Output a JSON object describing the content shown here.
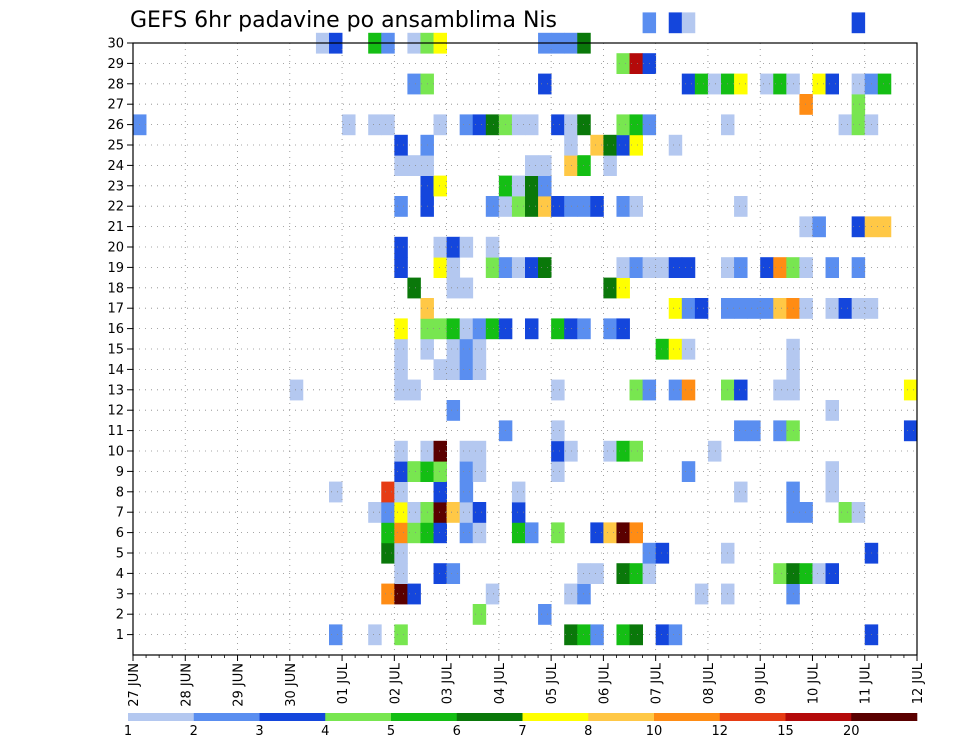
{
  "chart_data": {
    "type": "heatmap",
    "title": "GEFS 6hr padavine po ansamblima Nis",
    "xlabel": "",
    "ylabel": "",
    "x_ticks": [
      "27 JUN",
      "28 JUN",
      "29 JUN",
      "30 JUN",
      "01 JUL",
      "02 JUL",
      "03 JUL",
      "04 JUL",
      "05 JUL",
      "06 JUL",
      "07 JUL",
      "08 JUL",
      "09 JUL",
      "10 JUL",
      "11 JUL",
      "12 JUL"
    ],
    "y_ticks": [
      "1",
      "2",
      "3",
      "4",
      "5",
      "6",
      "7",
      "8",
      "9",
      "10",
      "11",
      "12",
      "13",
      "14",
      "15",
      "16",
      "17",
      "18",
      "19",
      "20",
      "21",
      "22",
      "23",
      "24",
      "25",
      "26",
      "27",
      "28",
      "29",
      "30"
    ],
    "time_steps_per_day": 4,
    "x_range": [
      0,
      60
    ],
    "y_range": [
      0,
      30
    ],
    "grid": true,
    "legend": {
      "position": "bottom",
      "labels": [
        "1",
        "2",
        "3",
        "4",
        "5",
        "6",
        "7",
        "8",
        "10",
        "12",
        "15",
        "20"
      ],
      "colors": [
        "#b4c8f0",
        "#5a8ef0",
        "#1446dc",
        "#78e650",
        "#14be14",
        "#0a780a",
        "#ffff00",
        "#ffc846",
        "#ff8c14",
        "#e63c14",
        "#b40a0a",
        "#5a0000"
      ]
    },
    "cells": [
      [
        1,
        15,
        "#5a8ef0"
      ],
      [
        1,
        18,
        "#b4c8f0"
      ],
      [
        1,
        20,
        "#78e650"
      ],
      [
        1,
        33,
        "#0a780a"
      ],
      [
        1,
        34,
        "#14be14"
      ],
      [
        1,
        35,
        "#5a8ef0"
      ],
      [
        1,
        37,
        "#14be14"
      ],
      [
        1,
        38,
        "#0a780a"
      ],
      [
        1,
        40,
        "#1446dc"
      ],
      [
        1,
        41,
        "#5a8ef0"
      ],
      [
        1,
        56,
        "#1446dc"
      ],
      [
        2,
        26,
        "#78e650"
      ],
      [
        2,
        31,
        "#5a8ef0"
      ],
      [
        3,
        19,
        "#ff8c14"
      ],
      [
        3,
        20,
        "#5a0000"
      ],
      [
        3,
        21,
        "#1446dc"
      ],
      [
        3,
        27,
        "#b4c8f0"
      ],
      [
        3,
        33,
        "#b4c8f0"
      ],
      [
        3,
        34,
        "#5a8ef0"
      ],
      [
        3,
        43,
        "#b4c8f0"
      ],
      [
        3,
        45,
        "#b4c8f0"
      ],
      [
        3,
        50,
        "#5a8ef0"
      ],
      [
        4,
        20,
        "#b4c8f0"
      ],
      [
        4,
        23,
        "#1446dc"
      ],
      [
        4,
        24,
        "#5a8ef0"
      ],
      [
        4,
        34,
        "#b4c8f0"
      ],
      [
        4,
        35,
        "#b4c8f0"
      ],
      [
        4,
        37,
        "#0a780a"
      ],
      [
        4,
        38,
        "#14be14"
      ],
      [
        4,
        39,
        "#b4c8f0"
      ],
      [
        4,
        49,
        "#78e650"
      ],
      [
        4,
        50,
        "#0a780a"
      ],
      [
        4,
        51,
        "#14be14"
      ],
      [
        4,
        52,
        "#b4c8f0"
      ],
      [
        4,
        53,
        "#1446dc"
      ],
      [
        5,
        19,
        "#0a780a"
      ],
      [
        5,
        20,
        "#b4c8f0"
      ],
      [
        5,
        39,
        "#5a8ef0"
      ],
      [
        5,
        40,
        "#1446dc"
      ],
      [
        5,
        45,
        "#b4c8f0"
      ],
      [
        5,
        56,
        "#1446dc"
      ],
      [
        6,
        19,
        "#14be14"
      ],
      [
        6,
        20,
        "#ff8c14"
      ],
      [
        6,
        21,
        "#78e650"
      ],
      [
        6,
        22,
        "#14be14"
      ],
      [
        6,
        23,
        "#1446dc"
      ],
      [
        6,
        25,
        "#5a8ef0"
      ],
      [
        6,
        26,
        "#b4c8f0"
      ],
      [
        6,
        29,
        "#14be14"
      ],
      [
        6,
        30,
        "#5a8ef0"
      ],
      [
        6,
        32,
        "#78e650"
      ],
      [
        6,
        35,
        "#1446dc"
      ],
      [
        6,
        36,
        "#ffc846"
      ],
      [
        6,
        37,
        "#5a0000"
      ],
      [
        6,
        38,
        "#ff8c14"
      ],
      [
        7,
        18,
        "#b4c8f0"
      ],
      [
        7,
        19,
        "#5a8ef0"
      ],
      [
        7,
        20,
        "#ffff00"
      ],
      [
        7,
        21,
        "#b4c8f0"
      ],
      [
        7,
        22,
        "#78e650"
      ],
      [
        7,
        23,
        "#5a0000"
      ],
      [
        7,
        24,
        "#ffc846"
      ],
      [
        7,
        25,
        "#b4c8f0"
      ],
      [
        7,
        26,
        "#1446dc"
      ],
      [
        7,
        29,
        "#1446dc"
      ],
      [
        7,
        50,
        "#5a8ef0"
      ],
      [
        7,
        51,
        "#5a8ef0"
      ],
      [
        7,
        54,
        "#78e650"
      ],
      [
        7,
        55,
        "#b4c8f0"
      ],
      [
        8,
        15,
        "#b4c8f0"
      ],
      [
        8,
        19,
        "#e63c14"
      ],
      [
        8,
        20,
        "#b4c8f0"
      ],
      [
        8,
        23,
        "#1446dc"
      ],
      [
        8,
        25,
        "#5a8ef0"
      ],
      [
        8,
        29,
        "#b4c8f0"
      ],
      [
        8,
        46,
        "#b4c8f0"
      ],
      [
        8,
        50,
        "#5a8ef0"
      ],
      [
        8,
        53,
        "#b4c8f0"
      ],
      [
        9,
        20,
        "#1446dc"
      ],
      [
        9,
        21,
        "#78e650"
      ],
      [
        9,
        22,
        "#14be14"
      ],
      [
        9,
        23,
        "#78e650"
      ],
      [
        9,
        25,
        "#5a8ef0"
      ],
      [
        9,
        26,
        "#b4c8f0"
      ],
      [
        9,
        32,
        "#b4c8f0"
      ],
      [
        9,
        42,
        "#5a8ef0"
      ],
      [
        9,
        53,
        "#b4c8f0"
      ],
      [
        10,
        20,
        "#b4c8f0"
      ],
      [
        10,
        22,
        "#b4c8f0"
      ],
      [
        10,
        23,
        "#5a0000"
      ],
      [
        10,
        25,
        "#b4c8f0"
      ],
      [
        10,
        26,
        "#b4c8f0"
      ],
      [
        10,
        32,
        "#1446dc"
      ],
      [
        10,
        33,
        "#b4c8f0"
      ],
      [
        10,
        36,
        "#b4c8f0"
      ],
      [
        10,
        37,
        "#14be14"
      ],
      [
        10,
        38,
        "#78e650"
      ],
      [
        10,
        44,
        "#b4c8f0"
      ],
      [
        11,
        28,
        "#5a8ef0"
      ],
      [
        11,
        32,
        "#b4c8f0"
      ],
      [
        11,
        46,
        "#5a8ef0"
      ],
      [
        11,
        47,
        "#5a8ef0"
      ],
      [
        11,
        49,
        "#5a8ef0"
      ],
      [
        11,
        50,
        "#78e650"
      ],
      [
        11,
        59,
        "#1446dc"
      ],
      [
        12,
        24,
        "#5a8ef0"
      ],
      [
        12,
        53,
        "#b4c8f0"
      ],
      [
        13,
        12,
        "#b4c8f0"
      ],
      [
        13,
        20,
        "#b4c8f0"
      ],
      [
        13,
        21,
        "#b4c8f0"
      ],
      [
        13,
        32,
        "#b4c8f0"
      ],
      [
        13,
        38,
        "#78e650"
      ],
      [
        13,
        39,
        "#5a8ef0"
      ],
      [
        13,
        41,
        "#5a8ef0"
      ],
      [
        13,
        42,
        "#ff8c14"
      ],
      [
        13,
        45,
        "#78e650"
      ],
      [
        13,
        46,
        "#1446dc"
      ],
      [
        13,
        49,
        "#b4c8f0"
      ],
      [
        13,
        50,
        "#b4c8f0"
      ],
      [
        13,
        59,
        "#ffff00"
      ],
      [
        14,
        20,
        "#b4c8f0"
      ],
      [
        14,
        23,
        "#b4c8f0"
      ],
      [
        14,
        24,
        "#b4c8f0"
      ],
      [
        14,
        25,
        "#5a8ef0"
      ],
      [
        14,
        26,
        "#b4c8f0"
      ],
      [
        14,
        50,
        "#b4c8f0"
      ],
      [
        15,
        20,
        "#b4c8f0"
      ],
      [
        15,
        22,
        "#b4c8f0"
      ],
      [
        15,
        24,
        "#b4c8f0"
      ],
      [
        15,
        25,
        "#5a8ef0"
      ],
      [
        15,
        26,
        "#b4c8f0"
      ],
      [
        15,
        40,
        "#14be14"
      ],
      [
        15,
        41,
        "#ffff00"
      ],
      [
        15,
        42,
        "#b4c8f0"
      ],
      [
        15,
        50,
        "#b4c8f0"
      ],
      [
        16,
        20,
        "#ffff00"
      ],
      [
        16,
        22,
        "#78e650"
      ],
      [
        16,
        23,
        "#78e650"
      ],
      [
        16,
        24,
        "#14be14"
      ],
      [
        16,
        25,
        "#b4c8f0"
      ],
      [
        16,
        26,
        "#5a8ef0"
      ],
      [
        16,
        27,
        "#14be14"
      ],
      [
        16,
        28,
        "#1446dc"
      ],
      [
        16,
        30,
        "#1446dc"
      ],
      [
        16,
        32,
        "#14be14"
      ],
      [
        16,
        33,
        "#1446dc"
      ],
      [
        16,
        34,
        "#5a8ef0"
      ],
      [
        16,
        36,
        "#5a8ef0"
      ],
      [
        16,
        37,
        "#1446dc"
      ],
      [
        17,
        22,
        "#ffc846"
      ],
      [
        17,
        41,
        "#ffff00"
      ],
      [
        17,
        42,
        "#5a8ef0"
      ],
      [
        17,
        43,
        "#1446dc"
      ],
      [
        17,
        45,
        "#5a8ef0"
      ],
      [
        17,
        46,
        "#5a8ef0"
      ],
      [
        17,
        47,
        "#5a8ef0"
      ],
      [
        17,
        48,
        "#5a8ef0"
      ],
      [
        17,
        49,
        "#ffc846"
      ],
      [
        17,
        50,
        "#ff8c14"
      ],
      [
        17,
        51,
        "#b4c8f0"
      ],
      [
        17,
        53,
        "#b4c8f0"
      ],
      [
        17,
        54,
        "#1446dc"
      ],
      [
        17,
        55,
        "#b4c8f0"
      ],
      [
        17,
        56,
        "#b4c8f0"
      ],
      [
        18,
        21,
        "#0a780a"
      ],
      [
        18,
        24,
        "#b4c8f0"
      ],
      [
        18,
        25,
        "#b4c8f0"
      ],
      [
        18,
        36,
        "#0a780a"
      ],
      [
        18,
        37,
        "#ffff00"
      ],
      [
        19,
        20,
        "#1446dc"
      ],
      [
        19,
        23,
        "#ffff00"
      ],
      [
        19,
        24,
        "#b4c8f0"
      ],
      [
        19,
        27,
        "#78e650"
      ],
      [
        19,
        28,
        "#5a8ef0"
      ],
      [
        19,
        29,
        "#b4c8f0"
      ],
      [
        19,
        30,
        "#1446dc"
      ],
      [
        19,
        31,
        "#0a780a"
      ],
      [
        19,
        37,
        "#b4c8f0"
      ],
      [
        19,
        38,
        "#5a8ef0"
      ],
      [
        19,
        39,
        "#b4c8f0"
      ],
      [
        19,
        40,
        "#b4c8f0"
      ],
      [
        19,
        41,
        "#1446dc"
      ],
      [
        19,
        42,
        "#1446dc"
      ],
      [
        19,
        45,
        "#b4c8f0"
      ],
      [
        19,
        46,
        "#5a8ef0"
      ],
      [
        19,
        48,
        "#1446dc"
      ],
      [
        19,
        49,
        "#ff8c14"
      ],
      [
        19,
        50,
        "#78e650"
      ],
      [
        19,
        51,
        "#b4c8f0"
      ],
      [
        19,
        53,
        "#5a8ef0"
      ],
      [
        19,
        55,
        "#5a8ef0"
      ],
      [
        20,
        20,
        "#1446dc"
      ],
      [
        20,
        23,
        "#b4c8f0"
      ],
      [
        20,
        24,
        "#1446dc"
      ],
      [
        20,
        25,
        "#b4c8f0"
      ],
      [
        20,
        27,
        "#b4c8f0"
      ],
      [
        21,
        51,
        "#b4c8f0"
      ],
      [
        21,
        52,
        "#5a8ef0"
      ],
      [
        21,
        55,
        "#1446dc"
      ],
      [
        21,
        56,
        "#ffc846"
      ],
      [
        21,
        57,
        "#ffc846"
      ],
      [
        22,
        20,
        "#5a8ef0"
      ],
      [
        22,
        22,
        "#1446dc"
      ],
      [
        22,
        27,
        "#5a8ef0"
      ],
      [
        22,
        28,
        "#b4c8f0"
      ],
      [
        22,
        29,
        "#78e650"
      ],
      [
        22,
        30,
        "#0a780a"
      ],
      [
        22,
        31,
        "#ffc846"
      ],
      [
        22,
        32,
        "#1446dc"
      ],
      [
        22,
        33,
        "#5a8ef0"
      ],
      [
        22,
        34,
        "#5a8ef0"
      ],
      [
        22,
        35,
        "#1446dc"
      ],
      [
        22,
        37,
        "#5a8ef0"
      ],
      [
        22,
        38,
        "#b4c8f0"
      ],
      [
        22,
        46,
        "#b4c8f0"
      ],
      [
        23,
        22,
        "#1446dc"
      ],
      [
        23,
        23,
        "#ffff00"
      ],
      [
        23,
        28,
        "#14be14"
      ],
      [
        23,
        29,
        "#b4c8f0"
      ],
      [
        23,
        30,
        "#0a780a"
      ],
      [
        23,
        31,
        "#5a8ef0"
      ],
      [
        24,
        20,
        "#b4c8f0"
      ],
      [
        24,
        21,
        "#b4c8f0"
      ],
      [
        24,
        22,
        "#b4c8f0"
      ],
      [
        24,
        30,
        "#b4c8f0"
      ],
      [
        24,
        31,
        "#b4c8f0"
      ],
      [
        24,
        33,
        "#ffc846"
      ],
      [
        24,
        34,
        "#14be14"
      ],
      [
        24,
        36,
        "#b4c8f0"
      ],
      [
        25,
        20,
        "#1446dc"
      ],
      [
        25,
        22,
        "#5a8ef0"
      ],
      [
        25,
        33,
        "#b4c8f0"
      ],
      [
        25,
        35,
        "#ffc846"
      ],
      [
        25,
        36,
        "#0a780a"
      ],
      [
        25,
        37,
        "#1446dc"
      ],
      [
        25,
        38,
        "#ffff00"
      ],
      [
        25,
        41,
        "#b4c8f0"
      ],
      [
        26,
        0,
        "#5a8ef0"
      ],
      [
        26,
        16,
        "#b4c8f0"
      ],
      [
        26,
        18,
        "#b4c8f0"
      ],
      [
        26,
        19,
        "#b4c8f0"
      ],
      [
        26,
        23,
        "#b4c8f0"
      ],
      [
        26,
        25,
        "#5a8ef0"
      ],
      [
        26,
        26,
        "#1446dc"
      ],
      [
        26,
        27,
        "#0a780a"
      ],
      [
        26,
        28,
        "#78e650"
      ],
      [
        26,
        29,
        "#b4c8f0"
      ],
      [
        26,
        30,
        "#b4c8f0"
      ],
      [
        26,
        32,
        "#1446dc"
      ],
      [
        26,
        33,
        "#b4c8f0"
      ],
      [
        26,
        34,
        "#0a780a"
      ],
      [
        26,
        37,
        "#78e650"
      ],
      [
        26,
        38,
        "#14be14"
      ],
      [
        26,
        39,
        "#5a8ef0"
      ],
      [
        26,
        45,
        "#b4c8f0"
      ],
      [
        26,
        54,
        "#b4c8f0"
      ],
      [
        26,
        55,
        "#78e650"
      ],
      [
        26,
        56,
        "#b4c8f0"
      ],
      [
        27,
        51,
        "#ff8c14"
      ],
      [
        27,
        55,
        "#78e650"
      ],
      [
        28,
        21,
        "#5a8ef0"
      ],
      [
        28,
        22,
        "#78e650"
      ],
      [
        28,
        31,
        "#1446dc"
      ],
      [
        28,
        42,
        "#1446dc"
      ],
      [
        28,
        43,
        "#14be14"
      ],
      [
        28,
        44,
        "#b4c8f0"
      ],
      [
        28,
        45,
        "#14be14"
      ],
      [
        28,
        46,
        "#ffff00"
      ],
      [
        28,
        48,
        "#b4c8f0"
      ],
      [
        28,
        49,
        "#14be14"
      ],
      [
        28,
        50,
        "#b4c8f0"
      ],
      [
        28,
        52,
        "#ffff00"
      ],
      [
        28,
        53,
        "#1446dc"
      ],
      [
        28,
        55,
        "#b4c8f0"
      ],
      [
        28,
        56,
        "#5a8ef0"
      ],
      [
        28,
        57,
        "#14be14"
      ],
      [
        29,
        37,
        "#78e650"
      ],
      [
        29,
        38,
        "#b40a0a"
      ],
      [
        29,
        39,
        "#1446dc"
      ],
      [
        30,
        14,
        "#b4c8f0"
      ],
      [
        30,
        15,
        "#1446dc"
      ],
      [
        30,
        18,
        "#14be14"
      ],
      [
        30,
        19,
        "#5a8ef0"
      ],
      [
        30,
        21,
        "#b4c8f0"
      ],
      [
        30,
        22,
        "#78e650"
      ],
      [
        30,
        23,
        "#ffff00"
      ],
      [
        30,
        31,
        "#5a8ef0"
      ],
      [
        30,
        32,
        "#5a8ef0"
      ],
      [
        30,
        33,
        "#5a8ef0"
      ],
      [
        30,
        34,
        "#0a780a"
      ],
      [
        31,
        39,
        "#5a8ef0"
      ],
      [
        31,
        41,
        "#1446dc"
      ],
      [
        31,
        42,
        "#b4c8f0"
      ],
      [
        31,
        55,
        "#1446dc"
      ]
    ]
  }
}
